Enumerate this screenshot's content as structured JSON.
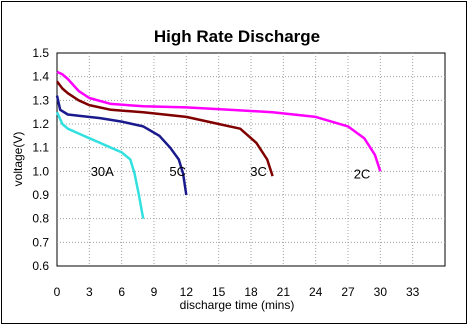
{
  "chart_data": {
    "type": "line",
    "title": "High Rate Discharge",
    "xlabel": "discharge time (mins)",
    "ylabel": "voltage(V)",
    "xlim": [
      0,
      36
    ],
    "ylim": [
      0.6,
      1.5
    ],
    "xticks": [
      0,
      3,
      6,
      9,
      12,
      15,
      18,
      21,
      24,
      27,
      30,
      33
    ],
    "yticks": [
      0.6,
      0.7,
      0.8,
      0.9,
      1.0,
      1.1,
      1.2,
      1.3,
      1.4,
      1.5
    ],
    "xtick_labels": [
      "0",
      "3",
      "6",
      "9",
      "12",
      "15",
      "18",
      "21",
      "24",
      "27",
      "30",
      "33"
    ],
    "ytick_labels": [
      "0.6",
      "0.7",
      "0.8",
      "0.9",
      "1.0",
      "1.1",
      "1.2",
      "1.3",
      "1.4",
      "1.5"
    ],
    "grid": true,
    "series": [
      {
        "name": "30A",
        "color": "#33e0e0",
        "points": [
          [
            0,
            1.25
          ],
          [
            0.5,
            1.2
          ],
          [
            1,
            1.18
          ],
          [
            2,
            1.16
          ],
          [
            3,
            1.14
          ],
          [
            4,
            1.12
          ],
          [
            5,
            1.1
          ],
          [
            6,
            1.08
          ],
          [
            6.8,
            1.05
          ],
          [
            7.2,
            0.99
          ],
          [
            7.6,
            0.9
          ],
          [
            8,
            0.8
          ]
        ]
      },
      {
        "name": "5C",
        "color": "#1a1a8c",
        "points": [
          [
            0,
            1.32
          ],
          [
            0.3,
            1.26
          ],
          [
            1,
            1.24
          ],
          [
            2,
            1.235
          ],
          [
            4,
            1.225
          ],
          [
            6,
            1.21
          ],
          [
            8,
            1.19
          ],
          [
            9.5,
            1.15
          ],
          [
            10.5,
            1.1
          ],
          [
            11.3,
            1.05
          ],
          [
            11.7,
            0.99
          ],
          [
            12,
            0.9
          ]
        ]
      },
      {
        "name": "3C",
        "color": "#800000",
        "points": [
          [
            0,
            1.38
          ],
          [
            0.5,
            1.35
          ],
          [
            1,
            1.33
          ],
          [
            2,
            1.3
          ],
          [
            3,
            1.28
          ],
          [
            5,
            1.26
          ],
          [
            8,
            1.25
          ],
          [
            12,
            1.23
          ],
          [
            15,
            1.2
          ],
          [
            17,
            1.18
          ],
          [
            18.5,
            1.12
          ],
          [
            19.5,
            1.05
          ],
          [
            20,
            0.98
          ]
        ]
      },
      {
        "name": "2C",
        "color": "#ff00ff",
        "points": [
          [
            0,
            1.42
          ],
          [
            0.5,
            1.41
          ],
          [
            1,
            1.39
          ],
          [
            2,
            1.34
          ],
          [
            3,
            1.31
          ],
          [
            5,
            1.285
          ],
          [
            8,
            1.275
          ],
          [
            12,
            1.27
          ],
          [
            16,
            1.26
          ],
          [
            20,
            1.25
          ],
          [
            24,
            1.23
          ],
          [
            27,
            1.19
          ],
          [
            28.5,
            1.14
          ],
          [
            29.5,
            1.07
          ],
          [
            30,
            1.0
          ]
        ]
      }
    ],
    "annotations": [
      {
        "text": "30A",
        "x": 4.2,
        "y": 0.98
      },
      {
        "text": "5C",
        "x": 11.2,
        "y": 0.98
      },
      {
        "text": "3C",
        "x": 18.7,
        "y": 0.98
      },
      {
        "text": "2C",
        "x": 28.3,
        "y": 0.97
      }
    ]
  }
}
